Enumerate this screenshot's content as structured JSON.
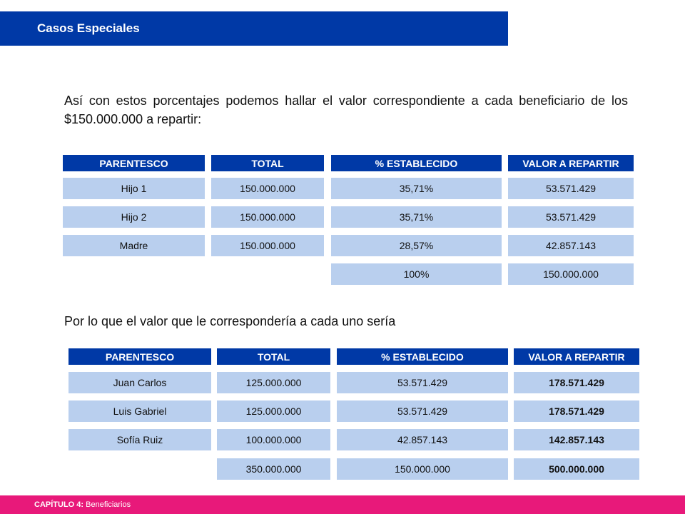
{
  "header": {
    "title": "Casos Especiales"
  },
  "intro": "Así con estos porcentajes podemos hallar el valor correspondiente a cada beneficiario de los $150.000.000 a repartir:",
  "table1": {
    "headers": [
      "PARENTESCO",
      "TOTAL",
      "% ESTABLECIDO",
      "VALOR A REPARTIR"
    ],
    "rows": [
      [
        "Hijo 1",
        "150.000.000",
        "35,71%",
        "53.571.429"
      ],
      [
        "Hijo 2",
        "150.000.000",
        "35,71%",
        "53.571.429"
      ],
      [
        "Madre",
        "150.000.000",
        "28,57%",
        "42.857.143"
      ]
    ],
    "totals": [
      "100%",
      "150.000.000"
    ]
  },
  "conclusion": "Por lo que el valor que le correspondería a cada uno sería",
  "table2": {
    "headers": [
      "PARENTESCO",
      "TOTAL",
      "% ESTABLECIDO",
      "VALOR A REPARTIR"
    ],
    "rows": [
      [
        "Juan Carlos",
        "125.000.000",
        "53.571.429",
        "178.571.429"
      ],
      [
        "Luis Gabriel",
        "125.000.000",
        "53.571.429",
        "178.571.429"
      ],
      [
        "Sofía Ruiz",
        "100.000.000",
        "42.857.143",
        "142.857.143"
      ]
    ],
    "totals": [
      "350.000.000",
      "150.000.000",
      "500.000.000"
    ]
  },
  "footer": {
    "chapter": "CAPÍTULO 4:",
    "section": "Beneficiarios"
  },
  "colors": {
    "primary_blue": "#0039a6",
    "cell_blue": "#b9cfee",
    "footer_pink": "#e8197a"
  }
}
